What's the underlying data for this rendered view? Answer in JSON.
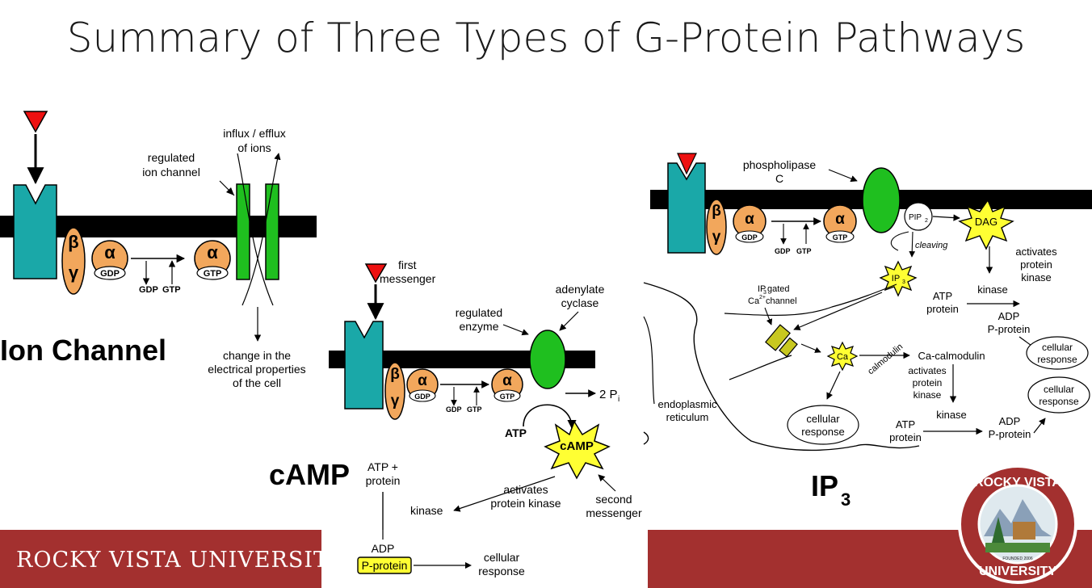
{
  "slide": {
    "title": "Summary of Three Types of G-Protein Pathways",
    "footer_text": "ROCKY VISTA UNIVERSITY",
    "logo": {
      "top_text": "ROCKY VISTA",
      "bottom_text": "UNIVERSITY",
      "founded": "FOUNDED 2006"
    }
  },
  "panels": {
    "ion_channel": {
      "heading": "Ion Channel",
      "label_channel_1": "regulated",
      "label_channel_2": "ion channel",
      "label_flux_1": "influx / efflux",
      "label_flux_2": "of ions",
      "label_change_1": "change in the",
      "label_change_2": "electrical properties",
      "label_change_3": "of the cell",
      "beta": "β",
      "gamma": "γ",
      "alpha": "α",
      "gdp": "GDP",
      "gtp": "GTP"
    },
    "camp": {
      "heading": "cAMP",
      "first_1": "first",
      "first_2": "messenger",
      "adenylate_1": "adenylate",
      "adenylate_2": "cyclase",
      "regulated_1": "regulated",
      "regulated_2": "enzyme",
      "two_pi": "2 P",
      "pi_sub": "i",
      "atp": "ATP",
      "camp_label": "cAMP",
      "second_1": "second",
      "second_2": "messenger",
      "atp_protein_1": "ATP +",
      "atp_protein_2": "protein",
      "activates_1": "activates",
      "activates_2": "protein kinase",
      "kinase": "kinase",
      "adp": "ADP",
      "p_protein": "P-protein",
      "cellular_1": "cellular",
      "cellular_2": "response",
      "beta": "β",
      "gamma": "γ",
      "alpha": "α",
      "gdp": "GDP",
      "gtp": "GTP"
    },
    "ip3": {
      "heading": "IP",
      "heading_sub": "3",
      "plc_1": "phospholipase",
      "plc_2": "C",
      "pip2": "PIP",
      "pip2_sub": "2",
      "dag": "DAG",
      "cleaving": "cleaving",
      "ip3_star": "IP",
      "ip3_star_sub": "3",
      "activates_1": "activates",
      "activates_2": "protein",
      "activates_3": "kinase",
      "gated_1": "IP",
      "gated_1_sub": "3",
      "gated_1_tail": " gated",
      "gated_2": "Ca",
      "gated_2_sup": "2+",
      "gated_2_tail": " channel",
      "kinase": "kinase",
      "atp_1": "ATP",
      "atp_2": "protein",
      "adp_1": "ADP",
      "adp_2": "P-protein",
      "cell_resp_a_1": "cellular",
      "cell_resp_a_2": "response",
      "cell_resp_b_1": "cellular",
      "cell_resp_b_2": "response",
      "ca": "Ca",
      "calmodulin": "calmodulin",
      "ca_calmodulin": "Ca-calmodulin",
      "act2_1": "activates",
      "act2_2": "protein",
      "act2_3": "kinase",
      "kinase2": "kinase",
      "atp2_1": "ATP",
      "atp2_2": "protein",
      "adp2_1": "ADP",
      "adp2_2": "P-protein",
      "er_1": "endoplasmic",
      "er_2": "reticulum",
      "cell_resp_c_1": "cellular",
      "cell_resp_c_2": "response",
      "beta": "β",
      "gamma": "γ",
      "alpha": "α",
      "gdp": "GDP",
      "gtp": "GTP"
    }
  },
  "colors": {
    "receptor": "#1aa8a8",
    "g_protein": "#f2a75c",
    "enzyme_green": "#1fbf1f",
    "star_yellow": "#ffff33",
    "p_protein_box": "#ffff33",
    "first_messenger_red": "#ee1111",
    "channel_olive": "#c8c820",
    "footer_red": "#a3302f"
  }
}
